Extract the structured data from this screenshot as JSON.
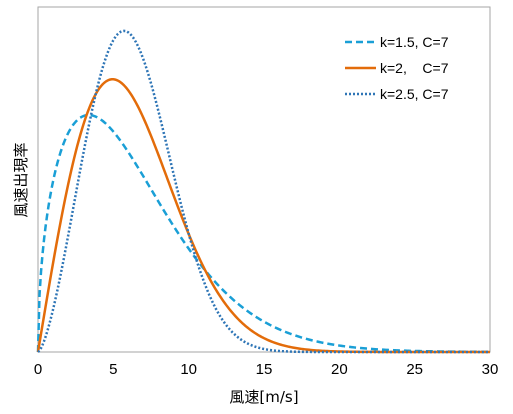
{
  "chart_data": {
    "type": "line",
    "title": "",
    "xlabel": "風速[m/s]",
    "ylabel": "風速出現率",
    "xlim": [
      0,
      30
    ],
    "ylim": [
      0,
      0.155
    ],
    "xticks": [
      "0",
      "5",
      "10",
      "15",
      "20",
      "25",
      "30"
    ],
    "yticks_shown": false,
    "grid": false,
    "legend_position": "top-right",
    "series": [
      {
        "name": "k=1.5, C=7",
        "k": 1.5,
        "C": 7,
        "color": "#1a9fd6",
        "style": "dashed"
      },
      {
        "name": "k=2,    C=7",
        "k": 2,
        "C": 7,
        "color": "#e36c0a",
        "style": "solid"
      },
      {
        "name": "k=2.5, C=7",
        "k": 2.5,
        "C": 7,
        "color": "#2e75b6",
        "style": "dotted"
      }
    ]
  }
}
